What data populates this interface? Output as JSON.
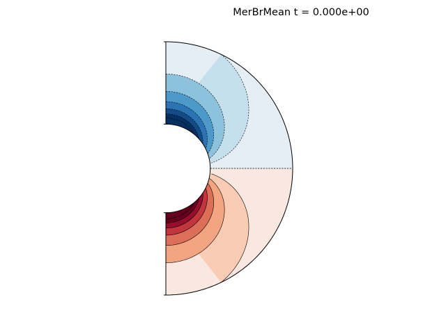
{
  "figure": {
    "title": "MerBrMean t = 0.000e+00"
  },
  "chart_data": {
    "type": "heatmap",
    "subtype": "meridional-slice-filled-contour",
    "title": "MerBrMean t = 0.000e+00",
    "field": "MerBrMean",
    "time": "0.000e+00",
    "geometry": {
      "shape": "half-annulus",
      "inner_radius_fraction": 0.35,
      "colatitude_range_deg": [
        0,
        180
      ]
    },
    "pattern": "dipolar: negative contours in the northern hemisphere, positive contours in the southern hemisphere, magnitude largest at the inner boundary near the poles",
    "colormap": "RdBu_r",
    "levels_negative": [
      -0.875,
      -0.75,
      -0.625,
      -0.5,
      -0.375,
      -0.25,
      -0.125,
      0
    ],
    "levels_positive": [
      0,
      0.125,
      0.25,
      0.375,
      0.5,
      0.625,
      0.75,
      0.875
    ],
    "colors_negative": [
      "#053061",
      "#134b87",
      "#2b73b3",
      "#4d99ca",
      "#8dc2dc",
      "#c5dfec",
      "#e5eef4"
    ],
    "colors_positive": [
      "#f8e8e0",
      "#fbccb4",
      "#f3a480",
      "#dd6f58",
      "#c1353c",
      "#970e2c",
      "#67001f"
    ],
    "negative_contour_style": "dashed",
    "positive_contour_style": "solid"
  }
}
